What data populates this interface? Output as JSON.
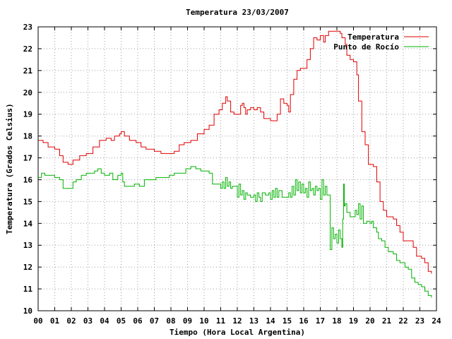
{
  "chart_data": {
    "type": "line",
    "title": "Temperatura 23/03/2007",
    "xlabel": "Tiempo (Hora Local Argentina)",
    "ylabel": "Temperatura (Grados Celsius)",
    "xlim": [
      0,
      24
    ],
    "ylim": [
      10,
      23
    ],
    "xticks": [
      "00",
      "01",
      "02",
      "03",
      "04",
      "05",
      "06",
      "07",
      "08",
      "09",
      "10",
      "11",
      "12",
      "13",
      "14",
      "15",
      "16",
      "17",
      "18",
      "19",
      "20",
      "21",
      "22",
      "23",
      "24"
    ],
    "yticks": [
      "10",
      "11",
      "12",
      "13",
      "14",
      "15",
      "16",
      "17",
      "18",
      "19",
      "20",
      "21",
      "22",
      "23"
    ],
    "grid": true,
    "legend_position": "top-right",
    "series": [
      {
        "name": "Temperatura",
        "color": "#e00000",
        "points": [
          [
            0.0,
            17.8
          ],
          [
            0.3,
            17.7
          ],
          [
            0.6,
            17.5
          ],
          [
            1.0,
            17.4
          ],
          [
            1.3,
            17.1
          ],
          [
            1.5,
            16.8
          ],
          [
            1.8,
            16.7
          ],
          [
            2.1,
            16.9
          ],
          [
            2.5,
            17.1
          ],
          [
            2.9,
            17.2
          ],
          [
            3.3,
            17.5
          ],
          [
            3.7,
            17.8
          ],
          [
            4.1,
            17.9
          ],
          [
            4.4,
            17.8
          ],
          [
            4.6,
            18.0
          ],
          [
            4.9,
            18.1
          ],
          [
            5.0,
            18.2
          ],
          [
            5.2,
            18.0
          ],
          [
            5.5,
            17.8
          ],
          [
            5.9,
            17.7
          ],
          [
            6.2,
            17.5
          ],
          [
            6.5,
            17.4
          ],
          [
            7.0,
            17.3
          ],
          [
            7.4,
            17.2
          ],
          [
            7.8,
            17.2
          ],
          [
            8.2,
            17.3
          ],
          [
            8.5,
            17.6
          ],
          [
            8.8,
            17.7
          ],
          [
            9.2,
            17.8
          ],
          [
            9.6,
            18.1
          ],
          [
            10.0,
            18.3
          ],
          [
            10.3,
            18.5
          ],
          [
            10.6,
            19.0
          ],
          [
            10.9,
            19.2
          ],
          [
            11.1,
            19.5
          ],
          [
            11.3,
            19.8
          ],
          [
            11.4,
            19.6
          ],
          [
            11.6,
            19.1
          ],
          [
            11.8,
            19.0
          ],
          [
            12.1,
            19.0
          ],
          [
            12.2,
            19.4
          ],
          [
            12.3,
            19.5
          ],
          [
            12.4,
            19.3
          ],
          [
            12.5,
            19.0
          ],
          [
            12.6,
            19.2
          ],
          [
            12.8,
            19.3
          ],
          [
            13.0,
            19.2
          ],
          [
            13.2,
            19.3
          ],
          [
            13.4,
            19.1
          ],
          [
            13.6,
            18.8
          ],
          [
            14.0,
            18.7
          ],
          [
            14.3,
            18.7
          ],
          [
            14.4,
            19.0
          ],
          [
            14.6,
            19.7
          ],
          [
            14.8,
            19.5
          ],
          [
            15.0,
            19.4
          ],
          [
            15.1,
            19.1
          ],
          [
            15.2,
            19.9
          ],
          [
            15.4,
            20.6
          ],
          [
            15.6,
            21.0
          ],
          [
            15.8,
            21.1
          ],
          [
            16.1,
            21.1
          ],
          [
            16.2,
            21.5
          ],
          [
            16.4,
            22.0
          ],
          [
            16.6,
            22.5
          ],
          [
            16.8,
            22.4
          ],
          [
            17.0,
            22.6
          ],
          [
            17.2,
            22.3
          ],
          [
            17.3,
            22.6
          ],
          [
            17.5,
            22.8
          ],
          [
            17.7,
            22.8
          ],
          [
            18.0,
            22.8
          ],
          [
            18.2,
            22.7
          ],
          [
            18.3,
            22.5
          ],
          [
            18.5,
            22.2
          ],
          [
            18.6,
            21.7
          ],
          [
            18.8,
            21.5
          ],
          [
            19.0,
            21.4
          ],
          [
            19.2,
            20.8
          ],
          [
            19.3,
            19.6
          ],
          [
            19.5,
            18.2
          ],
          [
            19.7,
            17.6
          ],
          [
            19.9,
            16.7
          ],
          [
            20.2,
            16.6
          ],
          [
            20.4,
            15.9
          ],
          [
            20.6,
            15.0
          ],
          [
            20.8,
            14.6
          ],
          [
            21.0,
            14.3
          ],
          [
            21.4,
            14.2
          ],
          [
            21.6,
            13.9
          ],
          [
            21.8,
            13.6
          ],
          [
            22.0,
            13.2
          ],
          [
            22.4,
            13.2
          ],
          [
            22.6,
            12.9
          ],
          [
            22.8,
            12.5
          ],
          [
            23.1,
            12.4
          ],
          [
            23.3,
            12.2
          ],
          [
            23.5,
            11.8
          ],
          [
            23.7,
            11.7
          ]
        ]
      },
      {
        "name": "Punto de Rocío",
        "color": "#00b000",
        "points": [
          [
            0.0,
            16.1
          ],
          [
            0.2,
            16.3
          ],
          [
            0.4,
            16.2
          ],
          [
            0.7,
            16.2
          ],
          [
            1.0,
            16.1
          ],
          [
            1.3,
            16.0
          ],
          [
            1.5,
            15.6
          ],
          [
            1.9,
            15.6
          ],
          [
            2.1,
            15.9
          ],
          [
            2.3,
            16.0
          ],
          [
            2.6,
            16.2
          ],
          [
            2.9,
            16.3
          ],
          [
            3.2,
            16.3
          ],
          [
            3.4,
            16.4
          ],
          [
            3.6,
            16.5
          ],
          [
            3.8,
            16.3
          ],
          [
            4.0,
            16.2
          ],
          [
            4.3,
            16.3
          ],
          [
            4.5,
            16.0
          ],
          [
            4.8,
            16.2
          ],
          [
            5.0,
            16.3
          ],
          [
            5.1,
            15.9
          ],
          [
            5.2,
            15.7
          ],
          [
            5.5,
            15.7
          ],
          [
            5.8,
            15.8
          ],
          [
            6.1,
            15.7
          ],
          [
            6.4,
            16.0
          ],
          [
            6.8,
            16.0
          ],
          [
            7.1,
            16.1
          ],
          [
            7.5,
            16.1
          ],
          [
            7.9,
            16.2
          ],
          [
            8.2,
            16.3
          ],
          [
            8.6,
            16.3
          ],
          [
            8.9,
            16.5
          ],
          [
            9.2,
            16.6
          ],
          [
            9.5,
            16.5
          ],
          [
            9.8,
            16.4
          ],
          [
            10.1,
            16.4
          ],
          [
            10.3,
            16.3
          ],
          [
            10.5,
            15.8
          ],
          [
            10.7,
            15.8
          ],
          [
            10.9,
            15.8
          ],
          [
            11.0,
            15.6
          ],
          [
            11.1,
            15.9
          ],
          [
            11.2,
            15.6
          ],
          [
            11.3,
            16.1
          ],
          [
            11.4,
            15.7
          ],
          [
            11.5,
            15.9
          ],
          [
            11.6,
            15.6
          ],
          [
            11.7,
            15.7
          ],
          [
            11.9,
            15.7
          ],
          [
            12.0,
            15.2
          ],
          [
            12.1,
            15.8
          ],
          [
            12.2,
            15.3
          ],
          [
            12.3,
            15.5
          ],
          [
            12.4,
            15.1
          ],
          [
            12.5,
            15.4
          ],
          [
            12.6,
            15.3
          ],
          [
            12.8,
            15.2
          ],
          [
            13.0,
            15.3
          ],
          [
            13.1,
            15.0
          ],
          [
            13.2,
            15.4
          ],
          [
            13.3,
            15.2
          ],
          [
            13.4,
            15.0
          ],
          [
            13.5,
            15.4
          ],
          [
            13.7,
            15.3
          ],
          [
            13.9,
            15.4
          ],
          [
            14.0,
            15.1
          ],
          [
            14.1,
            15.5
          ],
          [
            14.2,
            15.2
          ],
          [
            14.3,
            15.6
          ],
          [
            14.4,
            15.2
          ],
          [
            14.5,
            15.5
          ],
          [
            14.7,
            15.2
          ],
          [
            15.0,
            15.2
          ],
          [
            15.1,
            15.4
          ],
          [
            15.2,
            15.2
          ],
          [
            15.3,
            15.7
          ],
          [
            15.4,
            15.3
          ],
          [
            15.5,
            16.0
          ],
          [
            15.6,
            15.5
          ],
          [
            15.7,
            15.9
          ],
          [
            15.8,
            15.4
          ],
          [
            15.9,
            15.8
          ],
          [
            16.0,
            15.4
          ],
          [
            16.1,
            15.6
          ],
          [
            16.2,
            15.2
          ],
          [
            16.3,
            15.9
          ],
          [
            16.4,
            15.5
          ],
          [
            16.5,
            15.6
          ],
          [
            16.6,
            15.3
          ],
          [
            16.7,
            15.7
          ],
          [
            16.8,
            15.5
          ],
          [
            16.9,
            15.6
          ],
          [
            17.0,
            15.1
          ],
          [
            17.1,
            16.0
          ],
          [
            17.2,
            15.3
          ],
          [
            17.3,
            15.7
          ],
          [
            17.4,
            15.3
          ],
          [
            17.5,
            15.3
          ],
          [
            17.6,
            12.8
          ],
          [
            17.7,
            13.8
          ],
          [
            17.8,
            13.3
          ],
          [
            17.9,
            13.5
          ],
          [
            18.0,
            13.1
          ],
          [
            18.1,
            13.7
          ],
          [
            18.2,
            13.3
          ],
          [
            18.3,
            12.9
          ],
          [
            18.35,
            14.2
          ],
          [
            18.4,
            15.8
          ],
          [
            18.45,
            14.8
          ],
          [
            18.5,
            14.9
          ],
          [
            18.6,
            14.5
          ],
          [
            18.8,
            14.3
          ],
          [
            19.0,
            14.3
          ],
          [
            19.1,
            14.6
          ],
          [
            19.2,
            14.4
          ],
          [
            19.3,
            14.9
          ],
          [
            19.4,
            14.2
          ],
          [
            19.5,
            14.8
          ],
          [
            19.6,
            14.0
          ],
          [
            19.8,
            14.1
          ],
          [
            20.0,
            14.0
          ],
          [
            20.1,
            14.1
          ],
          [
            20.2,
            13.8
          ],
          [
            20.4,
            13.6
          ],
          [
            20.5,
            13.3
          ],
          [
            20.7,
            13.2
          ],
          [
            20.9,
            12.9
          ],
          [
            21.1,
            12.7
          ],
          [
            21.4,
            12.6
          ],
          [
            21.6,
            12.3
          ],
          [
            21.8,
            12.2
          ],
          [
            22.1,
            12.0
          ],
          [
            22.3,
            11.9
          ],
          [
            22.5,
            11.5
          ],
          [
            22.7,
            11.3
          ],
          [
            22.9,
            11.2
          ],
          [
            23.1,
            11.1
          ],
          [
            23.3,
            10.9
          ],
          [
            23.5,
            10.7
          ],
          [
            23.7,
            10.6
          ]
        ]
      }
    ]
  }
}
